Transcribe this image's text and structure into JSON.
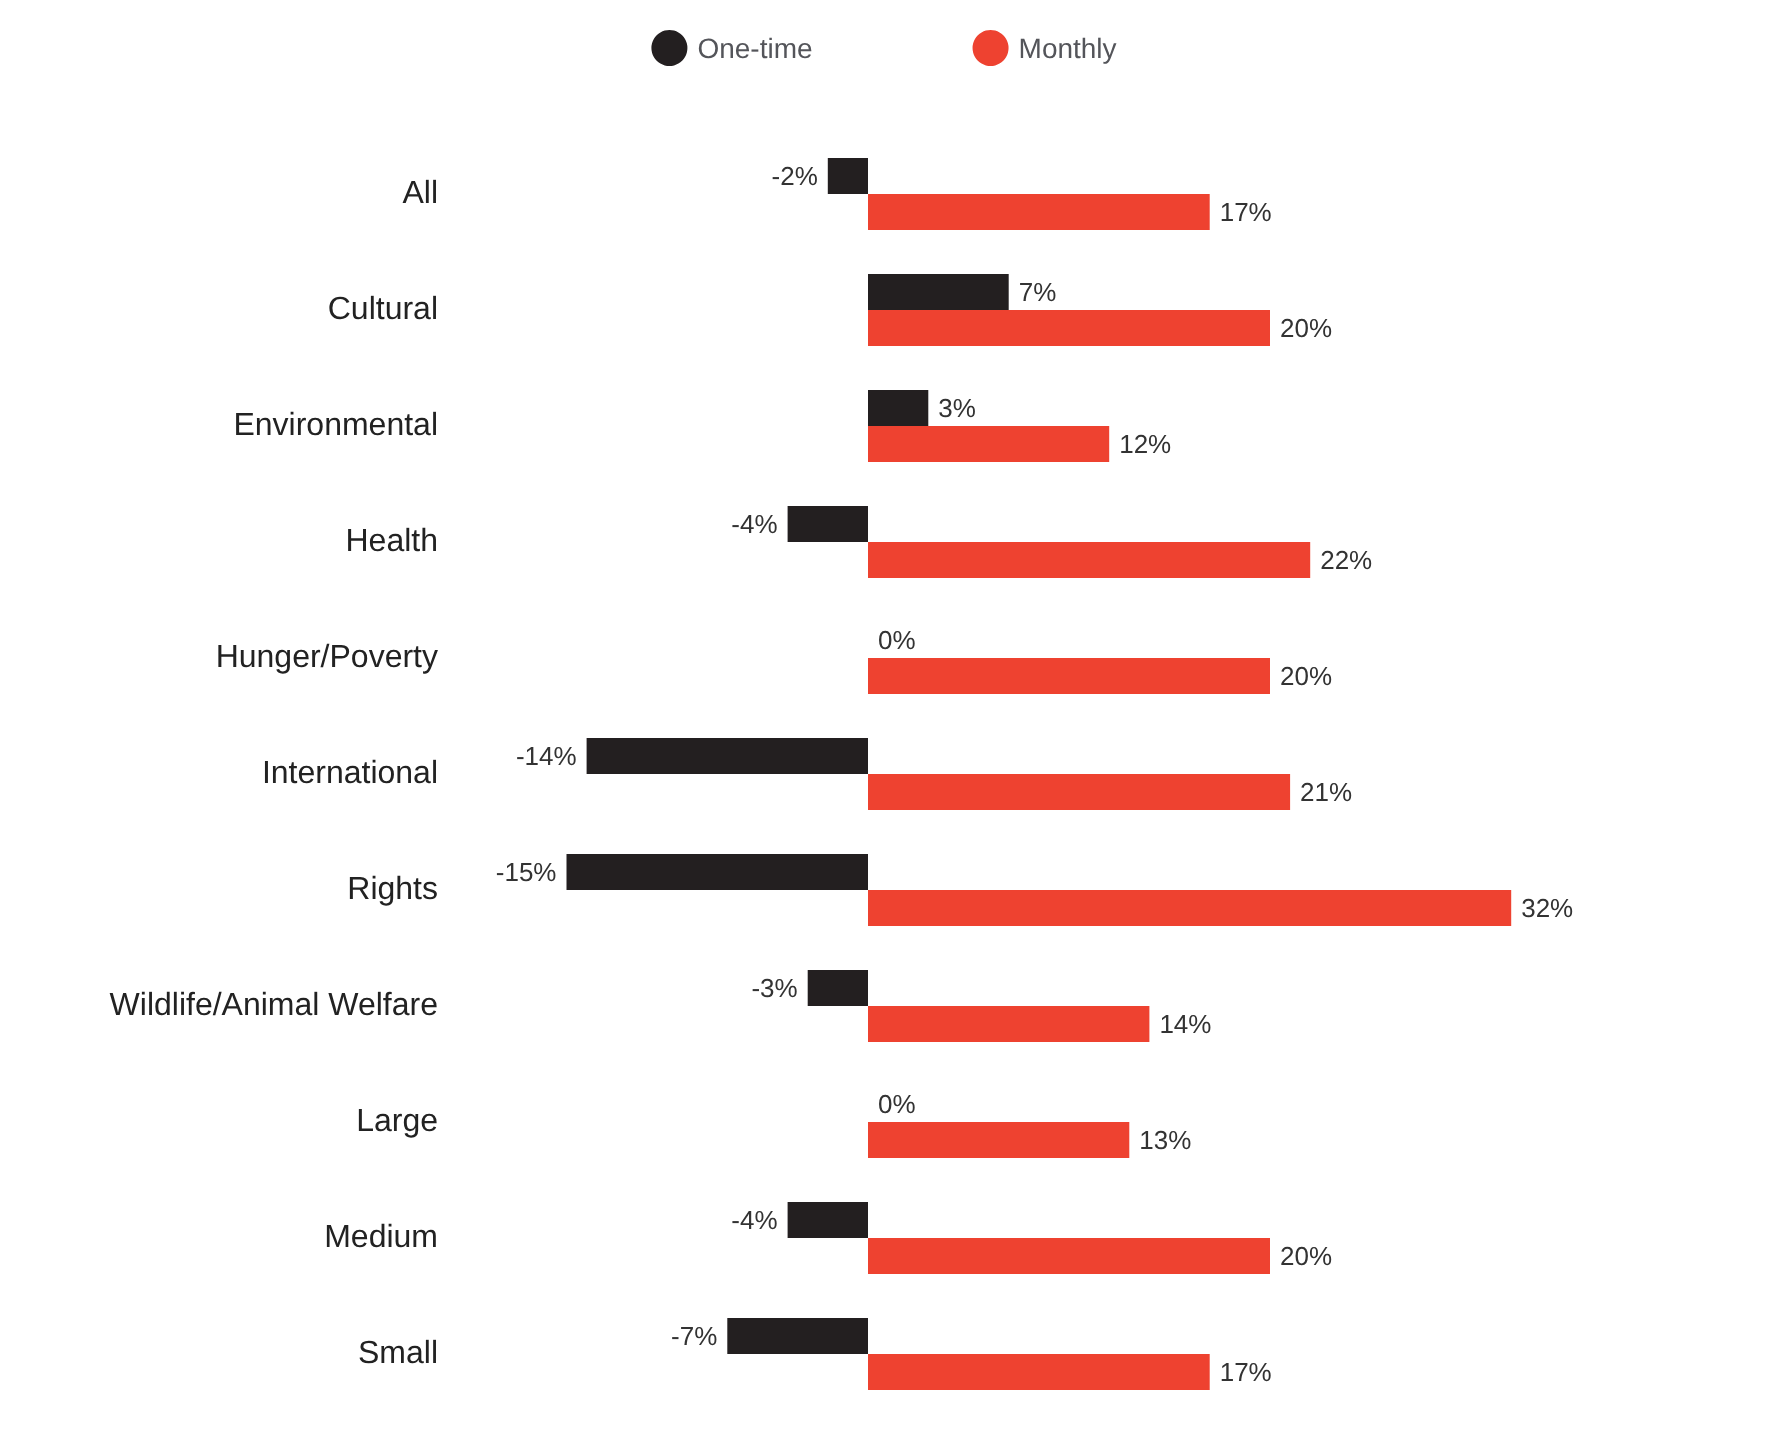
{
  "chart_data": {
    "type": "bar",
    "orientation": "horizontal",
    "legend": "top",
    "categories": [
      "All",
      "Cultural",
      "Environmental",
      "Health",
      "Hunger/Poverty",
      "International",
      "Rights",
      "Wildlife/Animal Welfare",
      "Large",
      "Medium",
      "Small"
    ],
    "series": [
      {
        "name": "One-time",
        "color": "#231f20",
        "values": [
          -2,
          7,
          3,
          -4,
          0,
          -14,
          -15,
          -3,
          0,
          -4,
          -7
        ],
        "value_labels": [
          "-2%",
          "7%",
          "3%",
          "-4%",
          "0%",
          "-14%",
          "-15%",
          "-3%",
          "0%",
          "-4%",
          "-7%"
        ]
      },
      {
        "name": "Monthly",
        "color": "#ee4230",
        "values": [
          17,
          20,
          12,
          22,
          20,
          21,
          32,
          14,
          13,
          20,
          17
        ],
        "value_labels": [
          "17%",
          "20%",
          "12%",
          "22%",
          "20%",
          "21%",
          "32%",
          "14%",
          "13%",
          "20%",
          "17%"
        ]
      }
    ]
  }
}
